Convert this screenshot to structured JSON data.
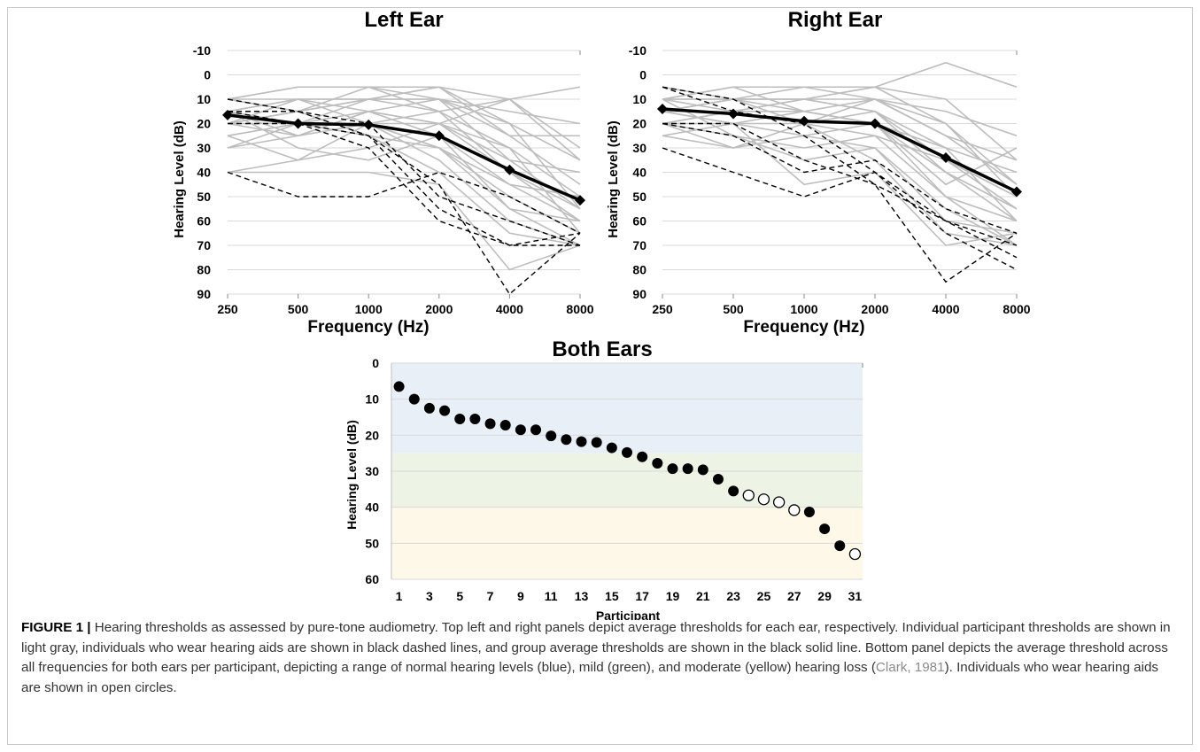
{
  "figure": {
    "label": "FIGURE 1",
    "separator": "|",
    "caption_part1": "Hearing thresholds as assessed by pure-tone audiometry. Top left and right panels depict average thresholds for each ear, respectively. Individual participant thresholds are shown in light gray, individuals who wear hearing aids are shown in black dashed lines, and group average thresholds are shown in the black solid line. Bottom panel depicts the average threshold across all frequencies for both ears per participant, depicting a range of normal hearing levels (blue), mild (green), and moderate (yellow) hearing loss (",
    "caption_cite": "Clark, 1981",
    "caption_part2": "). Individuals who wear hearing aids are shown in open circles."
  },
  "colors": {
    "individual": "#bdbdbd",
    "hearing_aid": "#000000",
    "average": "#000000",
    "normal_band": "#e9eff7",
    "mild_band": "#edf4e6",
    "moderate_band": "#fdf8e7",
    "grid": "#d9d9d9"
  },
  "chart_data": [
    {
      "type": "line",
      "title": "Left Ear",
      "xlabel": "Frequency (Hz)",
      "ylabel": "Hearing Level (dB)",
      "y_inverted": true,
      "ylim": [
        -10,
        90
      ],
      "yticks": [
        -10,
        0,
        10,
        20,
        30,
        40,
        50,
        60,
        70,
        80,
        90
      ],
      "categories": [
        "250",
        "500",
        "1000",
        "2000",
        "4000",
        "8000"
      ],
      "grid": true,
      "series": [
        {
          "role": "individual",
          "values": [
            10,
            5,
            5,
            5,
            10,
            35
          ]
        },
        {
          "role": "individual",
          "values": [
            15,
            10,
            10,
            5,
            25,
            45
          ]
        },
        {
          "role": "individual",
          "values": [
            10,
            5,
            5,
            10,
            15,
            20
          ]
        },
        {
          "role": "individual",
          "values": [
            20,
            15,
            10,
            15,
            30,
            50
          ]
        },
        {
          "role": "individual",
          "values": [
            25,
            20,
            15,
            20,
            40,
            55
          ]
        },
        {
          "role": "individual",
          "values": [
            15,
            25,
            20,
            35,
            60,
            70
          ]
        },
        {
          "role": "individual",
          "values": [
            10,
            10,
            15,
            25,
            45,
            60
          ]
        },
        {
          "role": "individual",
          "values": [
            40,
            35,
            30,
            20,
            10,
            5
          ]
        },
        {
          "role": "individual",
          "values": [
            25,
            35,
            20,
            30,
            50,
            65
          ]
        },
        {
          "role": "individual",
          "values": [
            20,
            20,
            25,
            30,
            55,
            70
          ]
        },
        {
          "role": "individual",
          "values": [
            15,
            10,
            20,
            20,
            35,
            40
          ]
        },
        {
          "role": "individual",
          "values": [
            30,
            25,
            15,
            10,
            20,
            35
          ]
        },
        {
          "role": "individual",
          "values": [
            40,
            40,
            40,
            45,
            80,
            70
          ]
        },
        {
          "role": "individual",
          "values": [
            10,
            15,
            5,
            15,
            10,
            30
          ]
        },
        {
          "role": "individual",
          "values": [
            20,
            15,
            25,
            40,
            65,
            70
          ]
        },
        {
          "role": "individual",
          "values": [
            15,
            30,
            35,
            25,
            55,
            60
          ]
        },
        {
          "role": "individual",
          "values": [
            20,
            10,
            10,
            10,
            25,
            25
          ]
        },
        {
          "role": "individual",
          "values": [
            15,
            20,
            20,
            30,
            45,
            50
          ]
        },
        {
          "role": "individual",
          "values": [
            10,
            15,
            10,
            5,
            20,
            55
          ]
        },
        {
          "role": "individual",
          "values": [
            25,
            20,
            20,
            15,
            40,
            60
          ]
        },
        {
          "role": "individual",
          "values": [
            20,
            25,
            15,
            20,
            30,
            65
          ]
        },
        {
          "role": "individual",
          "values": [
            30,
            20,
            10,
            10,
            35,
            55
          ]
        },
        {
          "role": "hearing_aid",
          "values": [
            40,
            50,
            50,
            40,
            50,
            65
          ]
        },
        {
          "role": "hearing_aid",
          "values": [
            20,
            20,
            30,
            60,
            70,
            65
          ]
        },
        {
          "role": "hearing_aid",
          "values": [
            15,
            15,
            25,
            45,
            90,
            65
          ]
        },
        {
          "role": "hearing_aid",
          "values": [
            10,
            15,
            20,
            50,
            60,
            70
          ]
        },
        {
          "role": "hearing_aid",
          "values": [
            15,
            20,
            25,
            55,
            70,
            70
          ]
        },
        {
          "role": "average",
          "values": [
            16.5,
            20,
            20.5,
            25,
            39,
            51.5
          ]
        }
      ]
    },
    {
      "type": "line",
      "title": "Right Ear",
      "xlabel": "Frequency (Hz)",
      "ylabel": "Hearing Level (dB)",
      "y_inverted": true,
      "ylim": [
        -10,
        90
      ],
      "yticks": [
        -10,
        0,
        10,
        20,
        30,
        40,
        50,
        60,
        70,
        80,
        90
      ],
      "categories": [
        "250",
        "500",
        "1000",
        "2000",
        "4000",
        "8000"
      ],
      "grid": true,
      "series": [
        {
          "role": "individual",
          "values": [
            5,
            10,
            10,
            5,
            -5,
            5
          ]
        },
        {
          "role": "individual",
          "values": [
            10,
            5,
            5,
            5,
            10,
            35
          ]
        },
        {
          "role": "individual",
          "values": [
            15,
            10,
            10,
            10,
            20,
            50
          ]
        },
        {
          "role": "individual",
          "values": [
            10,
            15,
            20,
            15,
            30,
            60
          ]
        },
        {
          "role": "individual",
          "values": [
            20,
            20,
            15,
            10,
            25,
            45
          ]
        },
        {
          "role": "individual",
          "values": [
            15,
            20,
            25,
            20,
            50,
            70
          ]
        },
        {
          "role": "individual",
          "values": [
            25,
            30,
            25,
            30,
            60,
            65
          ]
        },
        {
          "role": "individual",
          "values": [
            10,
            10,
            15,
            20,
            45,
            30
          ]
        },
        {
          "role": "individual",
          "values": [
            20,
            15,
            10,
            15,
            40,
            60
          ]
        },
        {
          "role": "individual",
          "values": [
            15,
            10,
            5,
            10,
            15,
            25
          ]
        },
        {
          "role": "individual",
          "values": [
            10,
            25,
            35,
            30,
            55,
            70
          ]
        },
        {
          "role": "individual",
          "values": [
            20,
            25,
            30,
            25,
            35,
            55
          ]
        },
        {
          "role": "individual",
          "values": [
            15,
            20,
            45,
            40,
            70,
            65
          ]
        },
        {
          "role": "individual",
          "values": [
            10,
            5,
            15,
            20,
            30,
            40
          ]
        },
        {
          "role": "individual",
          "values": [
            25,
            20,
            20,
            25,
            50,
            60
          ]
        },
        {
          "role": "individual",
          "values": [
            15,
            15,
            10,
            5,
            20,
            45
          ]
        },
        {
          "role": "individual",
          "values": [
            20,
            30,
            20,
            35,
            65,
            70
          ]
        },
        {
          "role": "individual",
          "values": [
            10,
            10,
            10,
            15,
            35,
            50
          ]
        },
        {
          "role": "individual",
          "values": [
            15,
            10,
            20,
            10,
            25,
            35
          ]
        },
        {
          "role": "individual",
          "values": [
            20,
            15,
            15,
            20,
            40,
            55
          ]
        },
        {
          "role": "hearing_aid",
          "values": [
            30,
            40,
            50,
            40,
            65,
            80
          ]
        },
        {
          "role": "hearing_aid",
          "values": [
            20,
            25,
            40,
            35,
            55,
            65
          ]
        },
        {
          "role": "hearing_aid",
          "values": [
            5,
            10,
            25,
            45,
            85,
            65
          ]
        },
        {
          "role": "hearing_aid",
          "values": [
            20,
            20,
            35,
            45,
            60,
            75
          ]
        },
        {
          "role": "hearing_aid",
          "values": [
            5,
            15,
            20,
            40,
            60,
            70
          ]
        },
        {
          "role": "average",
          "values": [
            14,
            16,
            19,
            20,
            34,
            48
          ]
        }
      ]
    },
    {
      "type": "scatter",
      "title": "Both Ears",
      "xlabel": "Participant",
      "ylabel": "Hearing Level (dB)",
      "y_inverted": true,
      "ylim": [
        0,
        60
      ],
      "yticks": [
        0,
        10,
        20,
        30,
        40,
        50,
        60
      ],
      "xlim": [
        0.5,
        31.5
      ],
      "xticks": [
        1,
        3,
        5,
        7,
        9,
        11,
        13,
        15,
        17,
        19,
        21,
        23,
        25,
        27,
        29,
        31
      ],
      "grid": true,
      "bands": [
        {
          "name": "normal",
          "from": 0,
          "to": 25,
          "color": "#e9eff7"
        },
        {
          "name": "mild",
          "from": 25,
          "to": 40,
          "color": "#edf4e6"
        },
        {
          "name": "moderate",
          "from": 40,
          "to": 60,
          "color": "#fdf8e7"
        }
      ],
      "points": [
        {
          "x": 1,
          "y": 6.5,
          "hearing_aid": false
        },
        {
          "x": 2,
          "y": 10,
          "hearing_aid": false
        },
        {
          "x": 3,
          "y": 12.5,
          "hearing_aid": false
        },
        {
          "x": 4,
          "y": 13.2,
          "hearing_aid": false
        },
        {
          "x": 5,
          "y": 15.5,
          "hearing_aid": false
        },
        {
          "x": 6,
          "y": 15.5,
          "hearing_aid": false
        },
        {
          "x": 7,
          "y": 16.8,
          "hearing_aid": false
        },
        {
          "x": 8,
          "y": 17.2,
          "hearing_aid": false
        },
        {
          "x": 9,
          "y": 18.5,
          "hearing_aid": false
        },
        {
          "x": 10,
          "y": 18.5,
          "hearing_aid": false
        },
        {
          "x": 11,
          "y": 20.2,
          "hearing_aid": false
        },
        {
          "x": 12,
          "y": 21.2,
          "hearing_aid": false
        },
        {
          "x": 13,
          "y": 21.8,
          "hearing_aid": false
        },
        {
          "x": 14,
          "y": 22,
          "hearing_aid": false
        },
        {
          "x": 15,
          "y": 23.5,
          "hearing_aid": false
        },
        {
          "x": 16,
          "y": 24.8,
          "hearing_aid": false
        },
        {
          "x": 17,
          "y": 26,
          "hearing_aid": false
        },
        {
          "x": 18,
          "y": 27.8,
          "hearing_aid": false
        },
        {
          "x": 19,
          "y": 29.3,
          "hearing_aid": false
        },
        {
          "x": 20,
          "y": 29.3,
          "hearing_aid": false
        },
        {
          "x": 21,
          "y": 29.6,
          "hearing_aid": false
        },
        {
          "x": 22,
          "y": 32.2,
          "hearing_aid": false
        },
        {
          "x": 23,
          "y": 35.5,
          "hearing_aid": false
        },
        {
          "x": 24,
          "y": 36.7,
          "hearing_aid": true
        },
        {
          "x": 25,
          "y": 37.8,
          "hearing_aid": true
        },
        {
          "x": 26,
          "y": 38.6,
          "hearing_aid": true
        },
        {
          "x": 27,
          "y": 40.8,
          "hearing_aid": true
        },
        {
          "x": 28,
          "y": 41.3,
          "hearing_aid": false
        },
        {
          "x": 29,
          "y": 46,
          "hearing_aid": false
        },
        {
          "x": 30,
          "y": 50.7,
          "hearing_aid": false
        },
        {
          "x": 31,
          "y": 53,
          "hearing_aid": true
        }
      ]
    }
  ]
}
